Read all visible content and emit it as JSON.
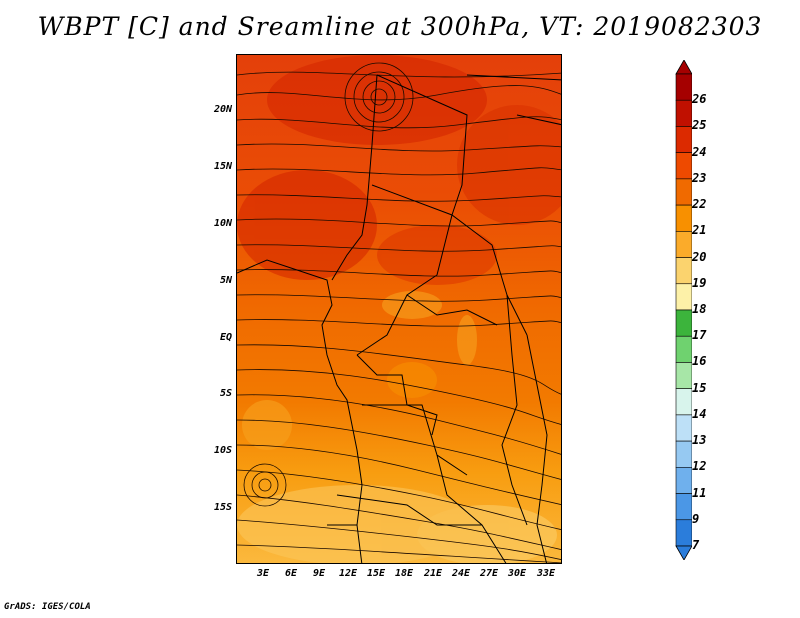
{
  "title": "WBPT [C] and Sreamline at 300hPa, VT: 2019082303",
  "footer": "GrADS: IGES/COLA",
  "latitude_labels": [
    "20N",
    "15N",
    "10N",
    "5N",
    "EQ",
    "5S",
    "10S",
    "15S"
  ],
  "longitude_labels": [
    "3E",
    "6E",
    "9E",
    "12E",
    "15E",
    "18E",
    "21E",
    "24E",
    "27E",
    "30E",
    "33E"
  ],
  "colorbar": {
    "labels": [
      "26",
      "25",
      "24",
      "23",
      "22",
      "21",
      "20",
      "19",
      "18",
      "17",
      "16",
      "15",
      "14",
      "13",
      "12",
      "11",
      "9",
      "7"
    ],
    "colors": [
      "#a50000",
      "#c01000",
      "#dc2a00",
      "#ee4a00",
      "#f06a00",
      "#f89000",
      "#fbab2a",
      "#fbd36e",
      "#fdf1a8",
      "#3cb43c",
      "#6fd26f",
      "#a7e6a7",
      "#d8f4ec",
      "#bde0f7",
      "#96c9f2",
      "#6fb0ed",
      "#4b97e6",
      "#2b7ddb"
    ]
  },
  "icons": {
    "triangle_top": "colorbar-max-arrow-icon",
    "triangle_bottom": "colorbar-min-arrow-icon"
  }
}
